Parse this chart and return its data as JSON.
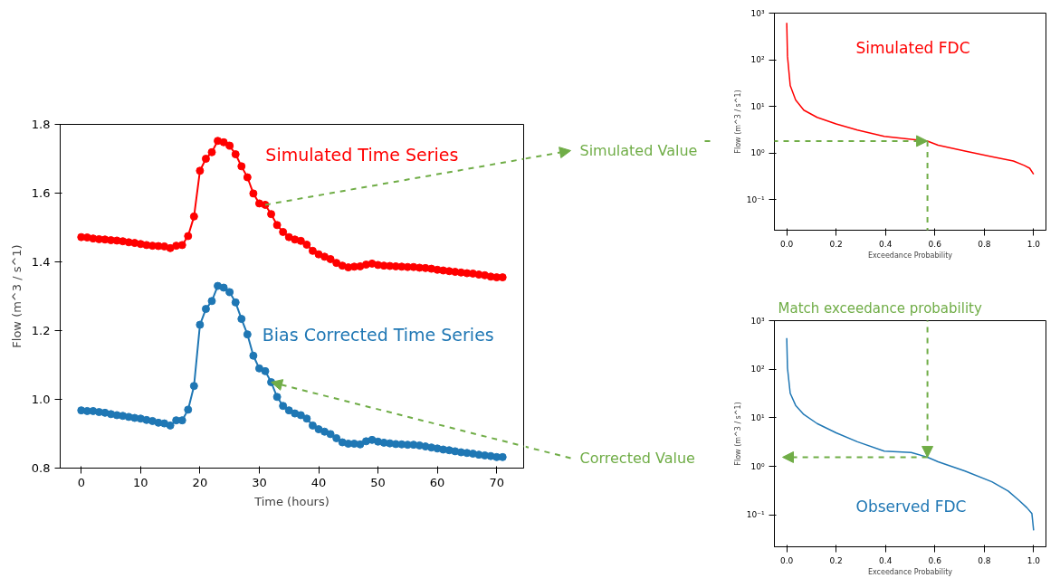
{
  "chart_data": [
    {
      "type": "line",
      "xlabel": "Time (hours)",
      "ylabel": "Flow (m^3 / s^1)",
      "marker": "circle",
      "xlim": [
        -3.55,
        74.55
      ],
      "ylim": [
        0.8,
        1.8
      ],
      "xticks": [
        0,
        10,
        20,
        30,
        40,
        50,
        60,
        70
      ],
      "yticks": [
        {
          "value": 0.8,
          "label": "0.8"
        },
        {
          "value": 1.0,
          "label": "1.0"
        },
        {
          "value": 1.2,
          "label": "1.2"
        },
        {
          "value": 1.4,
          "label": "1.4"
        },
        {
          "value": 1.6,
          "label": "1.6"
        },
        {
          "value": 1.8,
          "label": "1.8"
        }
      ],
      "x": [
        0,
        1,
        2,
        3,
        4,
        5,
        6,
        7,
        8,
        9,
        10,
        11,
        12,
        13,
        14,
        15,
        16,
        17,
        18,
        19,
        20,
        21,
        22,
        23,
        24,
        25,
        26,
        27,
        28,
        29,
        30,
        31,
        32,
        33,
        34,
        35,
        36,
        37,
        38,
        39,
        40,
        41,
        42,
        43,
        44,
        45,
        46,
        47,
        48,
        49,
        50,
        51,
        52,
        53,
        54,
        55,
        56,
        57,
        58,
        59,
        60,
        61,
        62,
        63,
        64,
        65,
        66,
        67,
        68,
        69,
        70,
        71
      ],
      "series": [
        {
          "name": "Simulated Time Series",
          "color": "#ff0000",
          "values": [
            1.472,
            1.471,
            1.468,
            1.466,
            1.465,
            1.463,
            1.462,
            1.46,
            1.457,
            1.455,
            1.452,
            1.449,
            1.447,
            1.446,
            1.445,
            1.44,
            1.447,
            1.449,
            1.475,
            1.532,
            1.665,
            1.7,
            1.719,
            1.752,
            1.748,
            1.738,
            1.713,
            1.678,
            1.646,
            1.599,
            1.57,
            1.566,
            1.539,
            1.507,
            1.487,
            1.472,
            1.465,
            1.461,
            1.45,
            1.432,
            1.422,
            1.415,
            1.408,
            1.397,
            1.389,
            1.384,
            1.386,
            1.387,
            1.392,
            1.395,
            1.391,
            1.389,
            1.388,
            1.387,
            1.386,
            1.385,
            1.385,
            1.383,
            1.382,
            1.38,
            1.377,
            1.375,
            1.373,
            1.371,
            1.369,
            1.367,
            1.366,
            1.363,
            1.361,
            1.357,
            1.355,
            1.355
          ]
        },
        {
          "name": "Bias Corrected Time Series",
          "color": "#1f77b4",
          "values": [
            0.968,
            0.966,
            0.966,
            0.963,
            0.961,
            0.957,
            0.954,
            0.952,
            0.949,
            0.946,
            0.944,
            0.94,
            0.937,
            0.932,
            0.93,
            0.924,
            0.939,
            0.939,
            0.97,
            1.039,
            1.217,
            1.263,
            1.286,
            1.33,
            1.325,
            1.312,
            1.282,
            1.234,
            1.189,
            1.127,
            1.09,
            1.082,
            1.05,
            1.007,
            0.981,
            0.968,
            0.959,
            0.954,
            0.944,
            0.924,
            0.913,
            0.906,
            0.899,
            0.887,
            0.875,
            0.871,
            0.871,
            0.869,
            0.878,
            0.882,
            0.877,
            0.874,
            0.872,
            0.87,
            0.869,
            0.868,
            0.868,
            0.866,
            0.863,
            0.86,
            0.857,
            0.854,
            0.852,
            0.849,
            0.846,
            0.844,
            0.842,
            0.839,
            0.837,
            0.835,
            0.832,
            0.832
          ]
        }
      ],
      "annotations": [
        {
          "text": "Simulated Value",
          "x": 31,
          "y": 1.566
        },
        {
          "text": "Corrected Value",
          "x": 32,
          "y": 1.05
        }
      ]
    },
    {
      "type": "line",
      "xlabel": "Exceedance Probability",
      "ylabel": "Flow (m^3 / s^1)",
      "log": "y",
      "xlim": [
        -0.05,
        1.05
      ],
      "ylim": [
        0.022,
        1000
      ],
      "xticks": [
        {
          "value": 0,
          "label": "0.0"
        },
        {
          "value": 0.2,
          "label": "0.2"
        },
        {
          "value": 0.4,
          "label": "0.4"
        },
        {
          "value": 0.6,
          "label": "0.6"
        },
        {
          "value": 0.8,
          "label": "0.8"
        },
        {
          "value": 1.0,
          "label": "1.0"
        }
      ],
      "yticks": [
        {
          "value": 0.1,
          "label": "10⁻¹"
        },
        {
          "value": 1,
          "label": "10⁰"
        },
        {
          "value": 10,
          "label": "10¹"
        },
        {
          "value": 100,
          "label": "10²"
        },
        {
          "value": 1000,
          "label": "10³"
        }
      ],
      "series": [
        {
          "name": "Simulated FDC",
          "color": "#ff0000",
          "x": [
            0,
            0.003,
            0.014,
            0.036,
            0.069,
            0.123,
            0.2,
            0.286,
            0.395,
            0.504,
            0.57,
            0.613,
            0.722,
            0.831,
            0.918,
            0.962,
            0.984,
            1.0
          ],
          "values": [
            620,
            119,
            28,
            13.7,
            8.3,
            5.8,
            4.2,
            3.1,
            2.27,
            1.97,
            1.8,
            1.47,
            1.1,
            0.83,
            0.67,
            0.54,
            0.47,
            0.35
          ]
        }
      ]
    },
    {
      "type": "line",
      "xlabel": "Exceedance Probability",
      "ylabel": "Flow (m^3 / s^1)",
      "log": "y",
      "xlim": [
        -0.05,
        1.05
      ],
      "ylim": [
        0.022,
        1000
      ],
      "xticks": [
        {
          "value": 0,
          "label": "0.0"
        },
        {
          "value": 0.2,
          "label": "0.2"
        },
        {
          "value": 0.4,
          "label": "0.4"
        },
        {
          "value": 0.6,
          "label": "0.6"
        },
        {
          "value": 0.8,
          "label": "0.8"
        },
        {
          "value": 1.0,
          "label": "1.0"
        }
      ],
      "yticks": [
        {
          "value": 0.1,
          "label": "10⁻¹"
        },
        {
          "value": 1,
          "label": "10⁰"
        },
        {
          "value": 10,
          "label": "10¹"
        },
        {
          "value": 100,
          "label": "10²"
        },
        {
          "value": 1000,
          "label": "10³"
        }
      ],
      "series": [
        {
          "name": "Observed FDC",
          "color": "#1f77b4",
          "x": [
            0,
            0.003,
            0.014,
            0.036,
            0.069,
            0.123,
            0.2,
            0.286,
            0.395,
            0.504,
            0.57,
            0.613,
            0.722,
            0.831,
            0.897,
            0.94,
            0.973,
            0.993,
            1.0
          ],
          "values": [
            437,
            105,
            32,
            18,
            11.7,
            7.6,
            4.9,
            3.2,
            2.06,
            1.92,
            1.54,
            1.24,
            0.8,
            0.48,
            0.31,
            0.2,
            0.14,
            0.106,
            0.048
          ]
        }
      ],
      "annotations": [
        {
          "text": "Match exceedance probability",
          "x": 0.57,
          "y": 1.54
        }
      ]
    }
  ]
}
